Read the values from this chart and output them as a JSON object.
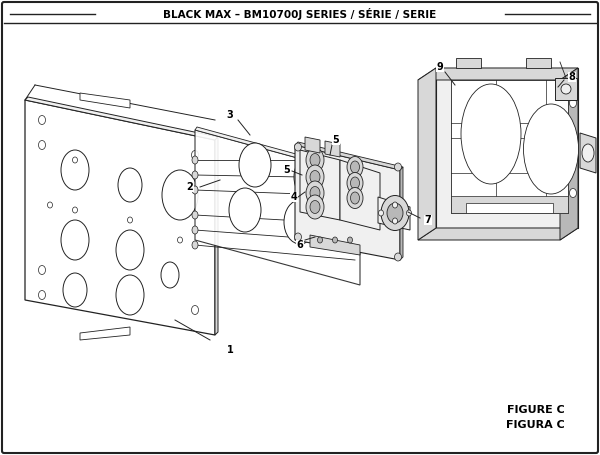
{
  "title": "BLACK MAX – BM10700J SERIES / SÉRIE / SERIE",
  "figure_label": "FIGURE C",
  "figura_label": "FIGURA C",
  "bg_color": "#ffffff",
  "line_color": "#222222",
  "lw_main": 0.8,
  "lw_thin": 0.5
}
